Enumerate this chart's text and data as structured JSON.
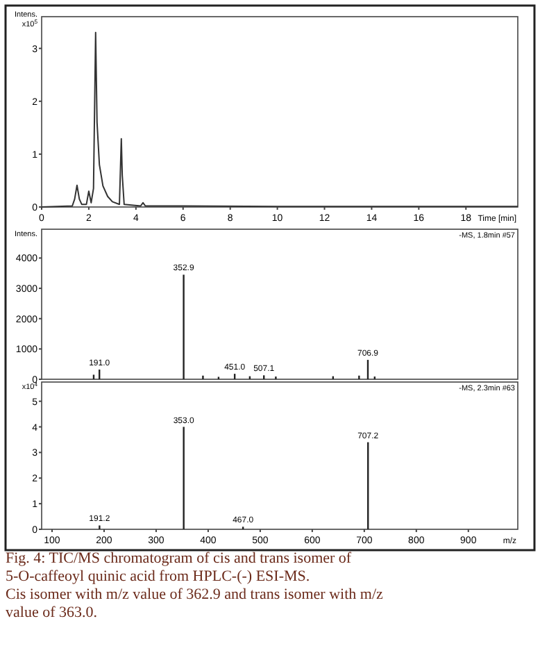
{
  "chart_data": [
    {
      "type": "line",
      "ylabel": "Intens. x10$^{5}$",
      "xlabel": "Time [min]",
      "xlim": [
        0,
        20.2
      ],
      "ylim": [
        0,
        3.6
      ],
      "xticks": [
        0,
        2,
        4,
        6,
        8,
        10,
        12,
        14,
        16,
        18
      ],
      "yticks": [
        0,
        1,
        2,
        3
      ],
      "grid": false,
      "series": [
        {
          "color": "#333333",
          "x": [
            0,
            1.3,
            1.4,
            1.5,
            1.6,
            1.7,
            1.9,
            2.0,
            2.1,
            2.2,
            2.29,
            2.35,
            2.45,
            2.6,
            2.8,
            3.0,
            3.3,
            3.38,
            3.42,
            3.5,
            4.2,
            4.3,
            4.4,
            6,
            10,
            14,
            20.2
          ],
          "values": [
            0,
            0.02,
            0.15,
            0.41,
            0.15,
            0.05,
            0.05,
            0.3,
            0.08,
            0.35,
            3.3,
            1.6,
            0.8,
            0.4,
            0.2,
            0.1,
            0.05,
            1.29,
            0.6,
            0.05,
            0.02,
            0.08,
            0.02,
            0.02,
            0.01,
            0.01,
            0.01
          ]
        }
      ]
    },
    {
      "type": "bar",
      "ylabel": "Intens.",
      "xlim": [
        80,
        995
      ],
      "ylim": [
        0,
        4950
      ],
      "yticks": [
        0,
        1000,
        2000,
        3000,
        4000
      ],
      "tick_labels": "y",
      "annotations": [
        "-MS, 1.8min #57",
        {
          "text": "191.0",
          "x": 191.0,
          "y": 320
        },
        {
          "text": "352.9",
          "x": 352.9,
          "y": 3450
        },
        {
          "text": "451.0",
          "x": 451.0,
          "y": 180
        },
        {
          "text": "507.1",
          "x": 507.1,
          "y": 130
        },
        {
          "text": "706.9",
          "x": 706.9,
          "y": 640
        }
      ],
      "series": [
        {
          "color": "#222222",
          "x": [
            180,
            191.0,
            352.9,
            390,
            420,
            451.0,
            480,
            507.1,
            530,
            640,
            690,
            706.9,
            720
          ],
          "values": [
            150,
            320,
            3450,
            120,
            80,
            180,
            100,
            130,
            90,
            100,
            120,
            640,
            90
          ]
        }
      ]
    },
    {
      "type": "bar",
      "ylabel": "x10$^{4}$",
      "xlabel": "m/z",
      "xlim": [
        80,
        995
      ],
      "ylim": [
        0,
        5.75
      ],
      "xticks": [
        100,
        200,
        300,
        400,
        500,
        600,
        700,
        800,
        900
      ],
      "yticks": [
        0,
        1,
        2,
        3,
        4,
        5
      ],
      "annotations": [
        "-MS, 2.3min #63",
        {
          "text": "191.2",
          "x": 191.2,
          "y": 0.15
        },
        {
          "text": "353.0",
          "x": 353.0,
          "y": 4.0
        },
        {
          "text": "467.0",
          "x": 467.0,
          "y": 0.1
        },
        {
          "text": "707.2",
          "x": 707.2,
          "y": 3.4
        },
        "Fig. 4: TIC/MS chromatogram of cis and trans isomer of 5-O-caffeoyl quinic acid from HPLC-(-) ESI-MS.",
        "Cis isomer with m/z value of 362.9 and trans isomer with m/z value of 363.0."
      ],
      "series": [
        {
          "color": "#222222",
          "x": [
            191.2,
            353.0,
            467.0,
            707.2
          ],
          "values": [
            0.15,
            4.0,
            0.1,
            3.4
          ]
        }
      ]
    }
  ]
}
